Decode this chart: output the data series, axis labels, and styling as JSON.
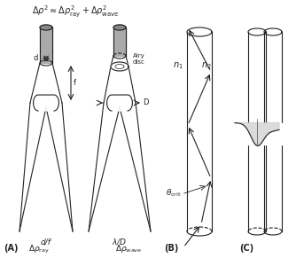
{
  "bg_color": "#f5f5f5",
  "line_color": "#222222",
  "gray_fill": "#aaaaaa",
  "light_gray": "#cccccc",
  "panel_A_label": "(A)",
  "panel_B_label": "(B)",
  "panel_C_label": "(C)",
  "delta_rho_ray": "Δρ",
  "formula_bottom": "Δρ² ≈ Δρ",
  "figsize": [
    3.34,
    2.91
  ],
  "dpi": 100
}
